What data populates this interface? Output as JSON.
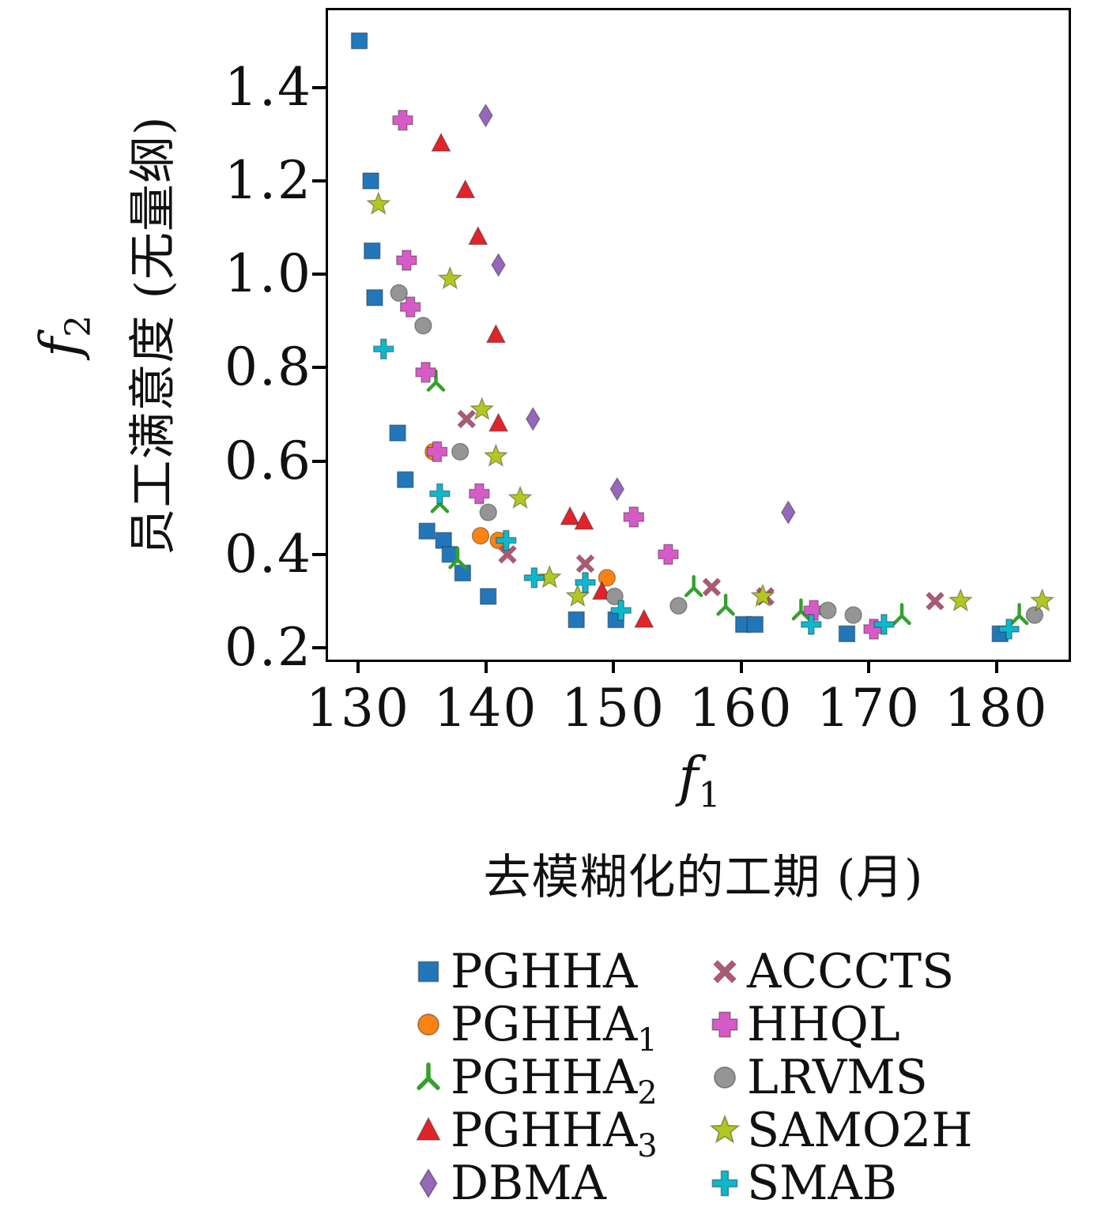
{
  "figure": {
    "background": "#ffffff",
    "axis_color": "#000000"
  },
  "axes": {
    "x": {
      "ticks": [
        130,
        140,
        150,
        160,
        170,
        180
      ],
      "tick_labels": [
        "130",
        "140",
        "150",
        "160",
        "170",
        "180"
      ],
      "label_var": "f",
      "label_sub": "1",
      "title": "去模糊化的工期 (月)"
    },
    "y": {
      "ticks": [
        0.2,
        0.4,
        0.6,
        0.8,
        1.0,
        1.2,
        1.4
      ],
      "tick_labels": [
        "0.2",
        "0.4",
        "0.6",
        "0.8",
        "1.0",
        "1.2",
        "1.4"
      ],
      "label_var": "f",
      "label_sub": "2",
      "title": "员工满意度 (无量纲)"
    }
  },
  "chart_data": {
    "type": "scatter",
    "title": "",
    "xlabel": "f1 — 去模糊化的工期 (月)",
    "ylabel": "f2 — 员工满意度 (无量纲)",
    "xlim": [
      127.7,
      186.1
    ],
    "ylim": [
      0.165,
      1.56
    ],
    "grid": false,
    "legend_position": "below-two-columns",
    "series": [
      {
        "name": "PGHHA",
        "sub": "",
        "marker": "square",
        "color": "#2277bb",
        "points": [
          [
            130.1,
            1.5
          ],
          [
            131.0,
            1.2
          ],
          [
            131.1,
            1.05
          ],
          [
            131.3,
            0.95
          ],
          [
            133.1,
            0.66
          ],
          [
            133.7,
            0.56
          ],
          [
            135.4,
            0.45
          ],
          [
            136.7,
            0.43
          ],
          [
            137.2,
            0.4
          ],
          [
            138.2,
            0.36
          ],
          [
            140.2,
            0.31
          ],
          [
            147.1,
            0.26
          ],
          [
            150.2,
            0.26
          ],
          [
            160.2,
            0.25
          ],
          [
            161.1,
            0.25
          ],
          [
            168.3,
            0.23
          ],
          [
            180.3,
            0.23
          ]
        ]
      },
      {
        "name": "PGHHA",
        "sub": "1",
        "marker": "circle",
        "color": "#fb8313",
        "points": [
          [
            135.9,
            0.62
          ],
          [
            139.6,
            0.44
          ],
          [
            141.0,
            0.43
          ],
          [
            149.5,
            0.35
          ]
        ]
      },
      {
        "name": "PGHHA",
        "sub": "2",
        "marker": "tri_down",
        "color": "#34a02c",
        "points": [
          [
            136.1,
            0.77
          ],
          [
            136.4,
            0.51
          ],
          [
            137.8,
            0.39
          ],
          [
            156.3,
            0.33
          ],
          [
            158.8,
            0.29
          ],
          [
            164.7,
            0.28
          ],
          [
            172.6,
            0.27
          ],
          [
            181.8,
            0.27
          ]
        ]
      },
      {
        "name": "PGHHA",
        "sub": "3",
        "marker": "triangle_up",
        "color": "#e1242a",
        "points": [
          [
            136.5,
            1.28
          ],
          [
            138.4,
            1.18
          ],
          [
            139.4,
            1.08
          ],
          [
            140.8,
            0.87
          ],
          [
            141.0,
            0.68
          ],
          [
            146.6,
            0.48
          ],
          [
            147.7,
            0.47
          ],
          [
            149.1,
            0.32
          ],
          [
            152.4,
            0.26
          ]
        ]
      },
      {
        "name": "DBMA",
        "sub": "",
        "marker": "thin_diamond",
        "color": "#9667bb",
        "points": [
          [
            140.0,
            1.34
          ],
          [
            141.0,
            1.02
          ],
          [
            143.7,
            0.69
          ],
          [
            150.3,
            0.54
          ],
          [
            163.7,
            0.49
          ]
        ]
      },
      {
        "name": "ACCCTS",
        "sub": "",
        "marker": "x",
        "color": "#a65c72",
        "points": [
          [
            138.5,
            0.69
          ],
          [
            141.7,
            0.4
          ],
          [
            147.8,
            0.38
          ],
          [
            157.7,
            0.33
          ],
          [
            161.9,
            0.31
          ],
          [
            175.2,
            0.3
          ]
        ]
      },
      {
        "name": "HHQL",
        "sub": "",
        "marker": "plus_filled",
        "color": "#d75bc7",
        "points": [
          [
            133.5,
            1.33
          ],
          [
            133.8,
            1.03
          ],
          [
            134.1,
            0.93
          ],
          [
            135.3,
            0.79
          ],
          [
            136.2,
            0.62
          ],
          [
            139.5,
            0.53
          ],
          [
            151.6,
            0.48
          ],
          [
            154.3,
            0.4
          ],
          [
            165.7,
            0.28
          ],
          [
            170.4,
            0.24
          ]
        ]
      },
      {
        "name": "LRVMS",
        "sub": "",
        "marker": "circle",
        "color": "#959595",
        "points": [
          [
            133.2,
            0.96
          ],
          [
            135.1,
            0.89
          ],
          [
            138.0,
            0.62
          ],
          [
            140.2,
            0.49
          ],
          [
            150.1,
            0.31
          ],
          [
            155.1,
            0.29
          ],
          [
            166.8,
            0.28
          ],
          [
            168.8,
            0.27
          ],
          [
            183.0,
            0.27
          ]
        ]
      },
      {
        "name": "SAMO2H",
        "sub": "",
        "marker": "star5",
        "color": "#b3c723",
        "points": [
          [
            131.6,
            1.15
          ],
          [
            137.2,
            0.99
          ],
          [
            139.7,
            0.71
          ],
          [
            140.8,
            0.61
          ],
          [
            142.7,
            0.52
          ],
          [
            145.0,
            0.35
          ],
          [
            147.2,
            0.31
          ],
          [
            161.7,
            0.31
          ],
          [
            177.2,
            0.3
          ],
          [
            183.6,
            0.3
          ]
        ]
      },
      {
        "name": "SMAB",
        "sub": "",
        "marker": "plus_thin",
        "color": "#0fb7cd",
        "points": [
          [
            132.0,
            0.84
          ],
          [
            136.4,
            0.53
          ],
          [
            141.6,
            0.43
          ],
          [
            143.8,
            0.35
          ],
          [
            147.8,
            0.34
          ],
          [
            150.6,
            0.28
          ],
          [
            165.5,
            0.25
          ],
          [
            171.2,
            0.25
          ],
          [
            181.0,
            0.24
          ]
        ]
      }
    ]
  },
  "legend": {
    "column1": [
      0,
      1,
      2,
      3,
      4
    ],
    "column2": [
      5,
      6,
      7,
      8,
      9
    ]
  }
}
